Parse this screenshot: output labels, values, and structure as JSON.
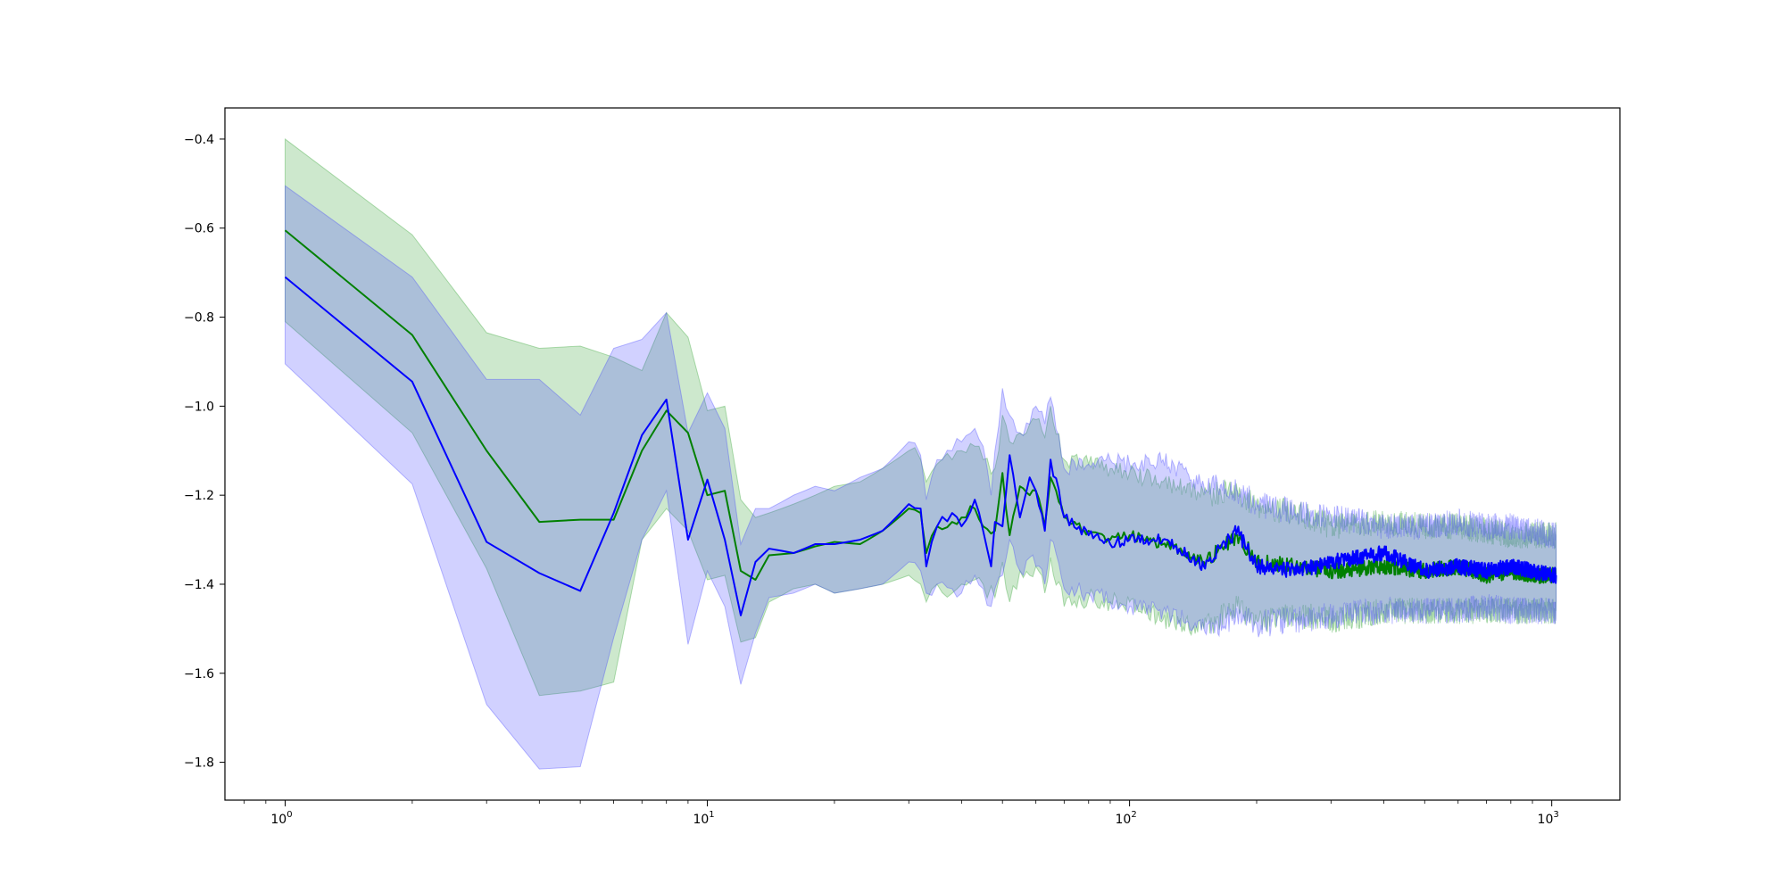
{
  "chart_data": {
    "type": "line",
    "title": "",
    "xlabel": "",
    "ylabel": "",
    "xscale": "log",
    "xlim": [
      0.72,
      1450
    ],
    "ylim": [
      -1.885,
      -0.33
    ],
    "grid": false,
    "legend": "none",
    "x_ticks": [
      {
        "base": "10",
        "exp": "0",
        "value": 1
      },
      {
        "base": "10",
        "exp": "1",
        "value": 10
      },
      {
        "base": "10",
        "exp": "2",
        "value": 100
      },
      {
        "base": "10",
        "exp": "3",
        "value": 1000
      }
    ],
    "y_ticks": [
      {
        "label": "−0.4",
        "value": -0.4
      },
      {
        "label": "−0.6",
        "value": -0.6
      },
      {
        "label": "−0.8",
        "value": -0.8
      },
      {
        "label": "−1.0",
        "value": -1.0
      },
      {
        "label": "−1.2",
        "value": -1.2
      },
      {
        "label": "−1.4",
        "value": -1.4
      },
      {
        "label": "−1.6",
        "value": -1.6
      },
      {
        "label": "−1.8",
        "value": -1.8
      }
    ],
    "series": [
      {
        "color": "#008000",
        "band_color": "#2ca02c",
        "x": [
          1,
          2,
          3,
          4,
          5,
          6,
          7,
          8,
          9,
          10,
          11,
          12,
          13,
          14,
          16,
          18,
          20,
          23,
          26,
          30,
          32,
          33,
          35,
          38,
          40,
          43,
          45,
          48,
          50,
          52,
          55,
          58,
          60,
          63,
          65,
          70,
          80,
          90,
          100,
          120,
          150,
          180,
          200,
          250,
          300,
          400,
          500,
          600,
          700,
          800,
          900,
          1000,
          1024
        ],
        "mean": [
          -0.605,
          -0.84,
          -1.1,
          -1.26,
          -1.255,
          -1.255,
          -1.1,
          -1.01,
          -1.06,
          -1.2,
          -1.19,
          -1.37,
          -1.39,
          -1.335,
          -1.33,
          -1.315,
          -1.305,
          -1.31,
          -1.28,
          -1.23,
          -1.24,
          -1.33,
          -1.27,
          -1.26,
          -1.25,
          -1.23,
          -1.27,
          -1.28,
          -1.15,
          -1.29,
          -1.18,
          -1.2,
          -1.19,
          -1.27,
          -1.16,
          -1.25,
          -1.28,
          -1.3,
          -1.29,
          -1.31,
          -1.35,
          -1.29,
          -1.35,
          -1.36,
          -1.37,
          -1.36,
          -1.37,
          -1.36,
          -1.38,
          -1.37,
          -1.38,
          -1.38,
          -1.38
        ],
        "upper": [
          -0.4,
          -0.615,
          -0.835,
          -0.87,
          -0.865,
          -0.89,
          -0.92,
          -0.79,
          -0.845,
          -1.01,
          -1.0,
          -1.21,
          -1.25,
          -1.24,
          -1.22,
          -1.2,
          -1.18,
          -1.17,
          -1.14,
          -1.1,
          -1.12,
          -1.17,
          -1.13,
          -1.12,
          -1.1,
          -1.09,
          -1.12,
          -1.14,
          -1.02,
          -1.08,
          -1.06,
          -1.04,
          -1.03,
          -1.07,
          -1.0,
          -1.12,
          -1.13,
          -1.14,
          -1.15,
          -1.17,
          -1.2,
          -1.19,
          -1.23,
          -1.24,
          -1.27,
          -1.26,
          -1.27,
          -1.27,
          -1.28,
          -1.29,
          -1.29,
          -1.29,
          -1.29
        ],
        "lower": [
          -0.81,
          -1.06,
          -1.365,
          -1.65,
          -1.64,
          -1.62,
          -1.3,
          -1.23,
          -1.28,
          -1.39,
          -1.38,
          -1.53,
          -1.52,
          -1.44,
          -1.41,
          -1.4,
          -1.42,
          -1.41,
          -1.4,
          -1.38,
          -1.4,
          -1.44,
          -1.4,
          -1.42,
          -1.4,
          -1.39,
          -1.4,
          -1.43,
          -1.35,
          -1.44,
          -1.37,
          -1.38,
          -1.36,
          -1.42,
          -1.34,
          -1.45,
          -1.43,
          -1.44,
          -1.44,
          -1.48,
          -1.5,
          -1.45,
          -1.48,
          -1.47,
          -1.48,
          -1.46,
          -1.46,
          -1.46,
          -1.46,
          -1.46,
          -1.46,
          -1.46,
          -1.46
        ]
      },
      {
        "color": "#0000ff",
        "band_color": "#4040ff",
        "x": [
          1,
          2,
          3,
          4,
          5,
          6,
          7,
          8,
          9,
          10,
          11,
          12,
          13,
          14,
          16,
          18,
          20,
          23,
          26,
          30,
          32,
          33,
          35,
          38,
          40,
          43,
          45,
          47,
          48,
          50,
          52,
          55,
          58,
          60,
          63,
          65,
          70,
          80,
          90,
          100,
          120,
          150,
          180,
          200,
          250,
          300,
          400,
          500,
          600,
          700,
          800,
          900,
          1000,
          1024
        ],
        "mean": [
          -0.71,
          -0.945,
          -1.305,
          -1.375,
          -1.415,
          -1.24,
          -1.065,
          -0.985,
          -1.3,
          -1.165,
          -1.3,
          -1.47,
          -1.35,
          -1.32,
          -1.33,
          -1.31,
          -1.31,
          -1.3,
          -1.28,
          -1.22,
          -1.23,
          -1.36,
          -1.27,
          -1.24,
          -1.27,
          -1.21,
          -1.28,
          -1.36,
          -1.26,
          -1.27,
          -1.11,
          -1.25,
          -1.16,
          -1.19,
          -1.28,
          -1.12,
          -1.25,
          -1.29,
          -1.31,
          -1.3,
          -1.3,
          -1.36,
          -1.28,
          -1.36,
          -1.37,
          -1.35,
          -1.33,
          -1.37,
          -1.36,
          -1.37,
          -1.36,
          -1.37,
          -1.38,
          -1.38
        ],
        "upper": [
          -0.505,
          -0.71,
          -0.94,
          -0.94,
          -1.02,
          -0.87,
          -0.85,
          -0.79,
          -1.06,
          -0.97,
          -1.05,
          -1.31,
          -1.23,
          -1.23,
          -1.2,
          -1.18,
          -1.19,
          -1.16,
          -1.14,
          -1.08,
          -1.11,
          -1.21,
          -1.12,
          -1.1,
          -1.08,
          -1.05,
          -1.09,
          -1.2,
          -1.1,
          -0.96,
          -1.02,
          -1.06,
          -1.04,
          -1.0,
          -1.04,
          -0.98,
          -1.14,
          -1.13,
          -1.12,
          -1.13,
          -1.12,
          -1.18,
          -1.19,
          -1.22,
          -1.24,
          -1.25,
          -1.27,
          -1.27,
          -1.26,
          -1.27,
          -1.27,
          -1.28,
          -1.29,
          -1.29
        ],
        "lower": [
          -0.905,
          -1.175,
          -1.67,
          -1.815,
          -1.81,
          -1.52,
          -1.3,
          -1.19,
          -1.535,
          -1.37,
          -1.45,
          -1.625,
          -1.51,
          -1.43,
          -1.42,
          -1.4,
          -1.42,
          -1.41,
          -1.4,
          -1.35,
          -1.37,
          -1.42,
          -1.4,
          -1.41,
          -1.42,
          -1.38,
          -1.41,
          -1.45,
          -1.41,
          -1.38,
          -1.3,
          -1.37,
          -1.34,
          -1.36,
          -1.4,
          -1.3,
          -1.41,
          -1.42,
          -1.44,
          -1.45,
          -1.46,
          -1.5,
          -1.47,
          -1.49,
          -1.48,
          -1.47,
          -1.46,
          -1.46,
          -1.46,
          -1.45,
          -1.46,
          -1.46,
          -1.46,
          -1.46
        ]
      }
    ]
  }
}
